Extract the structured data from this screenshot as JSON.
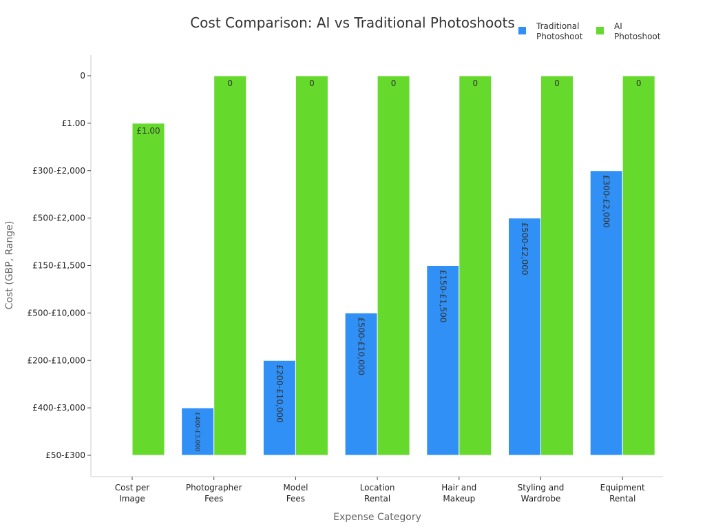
{
  "chart_data": {
    "type": "bar",
    "title": "Cost Comparison: AI vs Traditional Photoshoots",
    "xlabel": "Expense Category",
    "ylabel": "Cost (GBP, Range)",
    "y_axis_type": "categorical",
    "y_ticks": [
      "0",
      "£1.00",
      "£300-£2,000",
      "£500-£2,000",
      "£150-£1,500",
      "£500-£10,000",
      "£200-£10,000",
      "£400-£3,000",
      "£50-£300"
    ],
    "categories": [
      [
        "Cost per",
        "Image"
      ],
      [
        "Photographer",
        "Fees"
      ],
      [
        "Model",
        "Fees"
      ],
      [
        "Location",
        "Rental"
      ],
      [
        "Hair and",
        "Makeup"
      ],
      [
        "Styling and",
        "Wardrobe"
      ],
      [
        "Equipment",
        "Rental"
      ]
    ],
    "series": [
      {
        "name": [
          "Traditional",
          "Photoshoot"
        ],
        "color": "#3090f5",
        "values": [
          "£50-£300",
          "£400-£3,000",
          "£200-£10,000",
          "£500-£10,000",
          "£150-£1,500",
          "£500-£2,000",
          "£300-£2,000"
        ],
        "labels": [
          "",
          "£400-£3,000",
          "£200-£10,000",
          "£500-£10,000",
          "£150-£1,500",
          "£500-£2,000",
          "£300-£2,000"
        ]
      },
      {
        "name": [
          "AI",
          "Photoshoot"
        ],
        "color": "#65d92c",
        "values": [
          "£1.00",
          "0",
          "0",
          "0",
          "0",
          "0",
          "0"
        ],
        "labels": [
          "£1.00",
          "0",
          "0",
          "0",
          "0",
          "0",
          "0"
        ]
      }
    ],
    "legend_position": "top-right",
    "grid": false
  }
}
